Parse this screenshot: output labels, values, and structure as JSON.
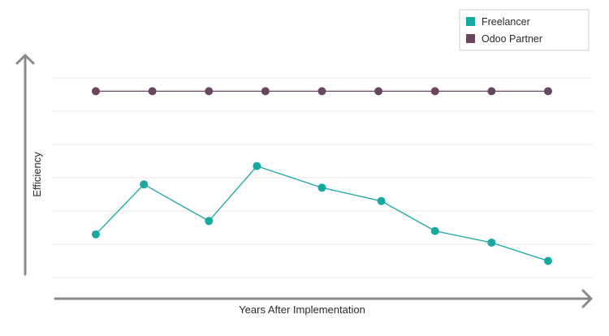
{
  "chart_data": {
    "type": "line",
    "title": "",
    "xlabel": "Years After Implementation",
    "ylabel": "Efficiency",
    "x": [
      1,
      2,
      3,
      4,
      5,
      6,
      7,
      8,
      9
    ],
    "ylim": [
      0,
      6
    ],
    "grid": true,
    "legend_position": "top-right",
    "series": [
      {
        "name": "Freelancer",
        "color": "#17a8a0",
        "x": [
          1,
          1.85,
          3,
          3.85,
          5,
          6.05,
          7,
          8,
          9
        ],
        "values": [
          1.3,
          2.8,
          1.7,
          3.35,
          2.7,
          2.3,
          1.4,
          1.05,
          0.5
        ]
      },
      {
        "name": "Odoo Partner",
        "color": "#6b4660",
        "x": [
          1,
          2,
          3,
          4,
          5,
          6,
          7,
          8,
          9
        ],
        "values": [
          5.6,
          5.6,
          5.6,
          5.6,
          5.6,
          5.6,
          5.6,
          5.6,
          5.6
        ]
      }
    ]
  }
}
